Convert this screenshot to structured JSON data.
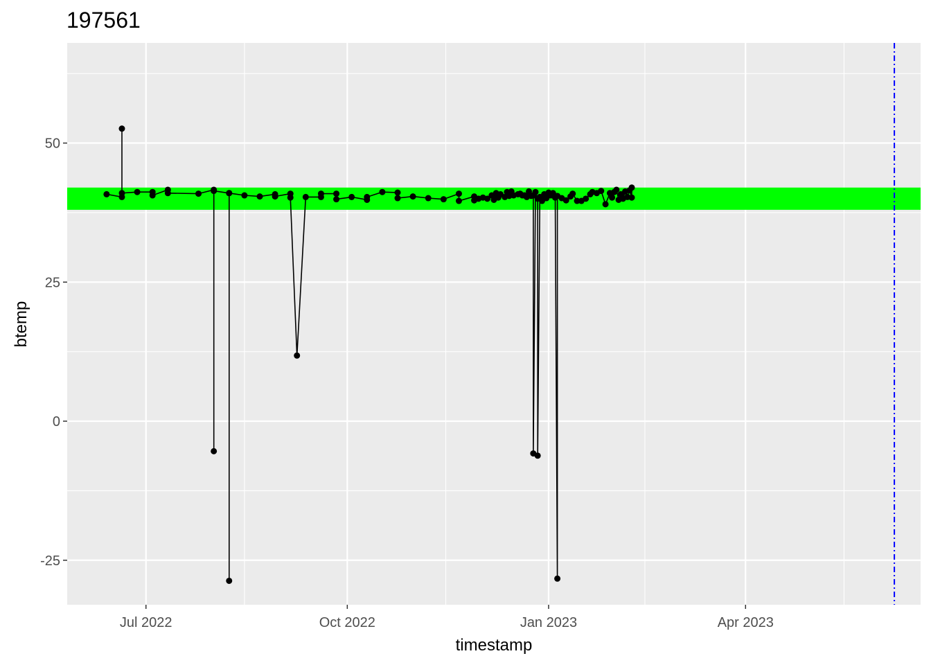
{
  "chart_data": {
    "type": "line",
    "title": "197561",
    "xlabel": "timestamp",
    "ylabel": "btemp",
    "x_ticks": [
      {
        "date": "2022-07-01",
        "label": "Jul 2022"
      },
      {
        "date": "2022-10-01",
        "label": "Oct 2022"
      },
      {
        "date": "2023-01-01",
        "label": "Jan 2023"
      },
      {
        "date": "2023-04-01",
        "label": "Apr 2023"
      }
    ],
    "x_minor_ticks": [
      "2022-08-15",
      "2022-11-15",
      "2023-02-14",
      "2023-05-16"
    ],
    "xlim": [
      "2022-05-26",
      "2023-06-20"
    ],
    "y_ticks": [
      -25,
      0,
      25,
      50
    ],
    "ylim": [
      -33,
      68
    ],
    "grid": true,
    "band": {
      "ymin": 38.0,
      "ymax": 42.0,
      "color": "#00ff00"
    },
    "vline": {
      "date": "2023-06-08",
      "color": "#0000ff",
      "style": "dashdot"
    },
    "series_color": "#000000",
    "background_color": "#ebebeb",
    "grid_color": "#ffffff",
    "points": [
      {
        "x": "2022-06-13",
        "y": 40.8
      },
      {
        "x": "2022-06-20",
        "y": 40.3
      },
      {
        "x": "2022-06-20",
        "y": 52.6
      },
      {
        "x": "2022-06-20",
        "y": 41.0
      },
      {
        "x": "2022-06-27",
        "y": 41.2
      },
      {
        "x": "2022-07-04",
        "y": 41.2
      },
      {
        "x": "2022-07-04",
        "y": 40.6
      },
      {
        "x": "2022-07-11",
        "y": 41.6
      },
      {
        "x": "2022-07-11",
        "y": 41.0
      },
      {
        "x": "2022-07-25",
        "y": 40.9
      },
      {
        "x": "2022-08-01",
        "y": 41.6
      },
      {
        "x": "2022-08-01",
        "y": -5.4
      },
      {
        "x": "2022-08-01",
        "y": 41.4
      },
      {
        "x": "2022-08-08",
        "y": 41.0
      },
      {
        "x": "2022-08-08",
        "y": -28.7
      },
      {
        "x": "2022-08-08",
        "y": 41.0
      },
      {
        "x": "2022-08-15",
        "y": 40.6
      },
      {
        "x": "2022-08-22",
        "y": 40.4
      },
      {
        "x": "2022-08-29",
        "y": 40.8
      },
      {
        "x": "2022-08-29",
        "y": 40.4
      },
      {
        "x": "2022-09-05",
        "y": 40.9
      },
      {
        "x": "2022-09-05",
        "y": 40.2
      },
      {
        "x": "2022-09-08",
        "y": 11.8
      },
      {
        "x": "2022-09-12",
        "y": 40.3
      },
      {
        "x": "2022-09-19",
        "y": 40.3
      },
      {
        "x": "2022-09-19",
        "y": 40.9
      },
      {
        "x": "2022-09-26",
        "y": 40.9
      },
      {
        "x": "2022-09-26",
        "y": 39.9
      },
      {
        "x": "2022-10-03",
        "y": 40.3
      },
      {
        "x": "2022-10-10",
        "y": 39.8
      },
      {
        "x": "2022-10-10",
        "y": 40.3
      },
      {
        "x": "2022-10-17",
        "y": 41.2
      },
      {
        "x": "2022-10-24",
        "y": 41.1
      },
      {
        "x": "2022-10-24",
        "y": 40.1
      },
      {
        "x": "2022-10-31",
        "y": 40.4
      },
      {
        "x": "2022-11-07",
        "y": 40.1
      },
      {
        "x": "2022-11-14",
        "y": 39.9
      },
      {
        "x": "2022-11-21",
        "y": 40.9
      },
      {
        "x": "2022-11-21",
        "y": 39.6
      },
      {
        "x": "2022-11-28",
        "y": 40.4
      },
      {
        "x": "2022-11-28",
        "y": 39.7
      },
      {
        "x": "2022-11-30",
        "y": 40.0
      },
      {
        "x": "2022-12-02",
        "y": 40.2
      },
      {
        "x": "2022-12-04",
        "y": 40.0
      },
      {
        "x": "2022-12-06",
        "y": 40.6
      },
      {
        "x": "2022-12-07",
        "y": 39.8
      },
      {
        "x": "2022-12-08",
        "y": 41.0
      },
      {
        "x": "2022-12-09",
        "y": 40.2
      },
      {
        "x": "2022-12-10",
        "y": 40.8
      },
      {
        "x": "2022-12-12",
        "y": 40.3
      },
      {
        "x": "2022-12-13",
        "y": 41.2
      },
      {
        "x": "2022-12-14",
        "y": 40.5
      },
      {
        "x": "2022-12-15",
        "y": 41.3
      },
      {
        "x": "2022-12-16",
        "y": 40.6
      },
      {
        "x": "2022-12-18",
        "y": 40.8
      },
      {
        "x": "2022-12-19",
        "y": 40.9
      },
      {
        "x": "2022-12-20",
        "y": 40.6
      },
      {
        "x": "2022-12-21",
        "y": 40.6
      },
      {
        "x": "2022-12-22",
        "y": 40.3
      },
      {
        "x": "2022-12-23",
        "y": 41.3
      },
      {
        "x": "2022-12-24",
        "y": 40.5
      },
      {
        "x": "2022-12-25",
        "y": 40.6
      },
      {
        "x": "2022-12-25",
        "y": -5.8
      },
      {
        "x": "2022-12-26",
        "y": 41.2
      },
      {
        "x": "2022-12-27",
        "y": 40.0
      },
      {
        "x": "2022-12-27",
        "y": -6.2
      },
      {
        "x": "2022-12-28",
        "y": 40.3
      },
      {
        "x": "2022-12-29",
        "y": 39.6
      },
      {
        "x": "2022-12-30",
        "y": 40.8
      },
      {
        "x": "2022-12-31",
        "y": 40.1
      },
      {
        "x": "2023-01-01",
        "y": 41.1
      },
      {
        "x": "2023-01-02",
        "y": 40.6
      },
      {
        "x": "2023-01-03",
        "y": 41.0
      },
      {
        "x": "2023-01-04",
        "y": 40.2
      },
      {
        "x": "2023-01-05",
        "y": -28.3
      },
      {
        "x": "2023-01-05",
        "y": 40.5
      },
      {
        "x": "2023-01-07",
        "y": 40.1
      },
      {
        "x": "2023-01-09",
        "y": 39.7
      },
      {
        "x": "2023-01-11",
        "y": 40.4
      },
      {
        "x": "2023-01-12",
        "y": 40.9
      },
      {
        "x": "2023-01-14",
        "y": 39.6
      },
      {
        "x": "2023-01-16",
        "y": 39.6
      },
      {
        "x": "2023-01-18",
        "y": 40.0
      },
      {
        "x": "2023-01-20",
        "y": 40.8
      },
      {
        "x": "2023-01-21",
        "y": 41.2
      },
      {
        "x": "2023-01-23",
        "y": 41.0
      },
      {
        "x": "2023-01-25",
        "y": 41.4
      },
      {
        "x": "2023-01-27",
        "y": 39.0
      },
      {
        "x": "2023-01-29",
        "y": 41.0
      },
      {
        "x": "2023-01-30",
        "y": 40.2
      },
      {
        "x": "2023-01-31",
        "y": 41.2
      },
      {
        "x": "2023-02-01",
        "y": 41.6
      },
      {
        "x": "2023-02-02",
        "y": 39.8
      },
      {
        "x": "2023-02-03",
        "y": 40.8
      },
      {
        "x": "2023-02-04",
        "y": 40.0
      },
      {
        "x": "2023-02-05",
        "y": 41.3
      },
      {
        "x": "2023-02-06",
        "y": 40.3
      },
      {
        "x": "2023-02-07",
        "y": 41.5
      },
      {
        "x": "2023-02-08",
        "y": 40.2
      },
      {
        "x": "2023-02-08",
        "y": 42.0
      }
    ]
  }
}
